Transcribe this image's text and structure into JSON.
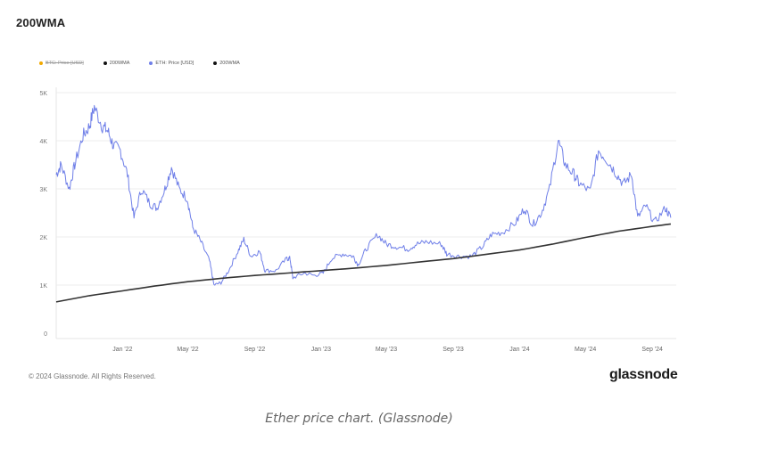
{
  "page": {
    "title": "200WMA",
    "copyright": "© 2024 Glassnode. All Rights Reserved.",
    "brand": "glassnode",
    "caption": "Ether price chart. (Glassnode)"
  },
  "legend": [
    {
      "label": "BTC: Price [USD]",
      "color": "#f2a900",
      "disabled": true
    },
    {
      "label": "200WMA",
      "color": "#111111",
      "disabled": false
    },
    {
      "label": "ETH: Price [USD]",
      "color": "#6f7fe8",
      "disabled": false
    },
    {
      "label": "200WMA",
      "color": "#111111",
      "disabled": false
    }
  ],
  "chart_data": {
    "type": "line",
    "title": "200WMA",
    "ylim": [
      0,
      5000
    ],
    "yticks": [
      0,
      1000,
      2000,
      3000,
      4000,
      5000
    ],
    "ytick_labels": [
      "0",
      "1K",
      "2K",
      "3K",
      "4K",
      "5K"
    ],
    "xlim": [
      "2021-09-01",
      "2024-10-15"
    ],
    "xticks": [
      {
        "date": "2022-01-01",
        "label": "Jan '22"
      },
      {
        "date": "2022-05-01",
        "label": "May '22"
      },
      {
        "date": "2022-09-01",
        "label": "Sep '22"
      },
      {
        "date": "2023-01-01",
        "label": "Jan '23"
      },
      {
        "date": "2023-05-01",
        "label": "May '23"
      },
      {
        "date": "2023-09-01",
        "label": "Sep '23"
      },
      {
        "date": "2024-01-01",
        "label": "Jan '24"
      },
      {
        "date": "2024-05-01",
        "label": "May '24"
      },
      {
        "date": "2024-09-01",
        "label": "Sep '24"
      }
    ],
    "grid": true,
    "series": [
      {
        "name": "ETH: Price [USD]",
        "color": "#6f7fe8",
        "points": [
          [
            "2021-09-01",
            3300
          ],
          [
            "2021-09-10",
            3500
          ],
          [
            "2021-09-25",
            3000
          ],
          [
            "2021-10-05",
            3500
          ],
          [
            "2021-10-20",
            4100
          ],
          [
            "2021-11-01",
            4300
          ],
          [
            "2021-11-10",
            4700
          ],
          [
            "2021-11-25",
            4300
          ],
          [
            "2021-12-05",
            4200
          ],
          [
            "2021-12-15",
            3900
          ],
          [
            "2021-12-28",
            3800
          ],
          [
            "2022-01-10",
            3300
          ],
          [
            "2022-01-22",
            2400
          ],
          [
            "2022-02-05",
            3000
          ],
          [
            "2022-02-20",
            2700
          ],
          [
            "2022-03-05",
            2600
          ],
          [
            "2022-03-20",
            3000
          ],
          [
            "2022-04-01",
            3450
          ],
          [
            "2022-04-15",
            3000
          ],
          [
            "2022-04-30",
            2800
          ],
          [
            "2022-05-10",
            2200
          ],
          [
            "2022-05-25",
            1900
          ],
          [
            "2022-06-10",
            1500
          ],
          [
            "2022-06-18",
            1000
          ],
          [
            "2022-07-01",
            1050
          ],
          [
            "2022-07-15",
            1300
          ],
          [
            "2022-08-01",
            1700
          ],
          [
            "2022-08-12",
            1950
          ],
          [
            "2022-08-25",
            1600
          ],
          [
            "2022-09-10",
            1700
          ],
          [
            "2022-09-20",
            1300
          ],
          [
            "2022-10-10",
            1300
          ],
          [
            "2022-10-30",
            1550
          ],
          [
            "2022-11-05",
            1550
          ],
          [
            "2022-11-10",
            1150
          ],
          [
            "2022-12-01",
            1250
          ],
          [
            "2022-12-20",
            1200
          ],
          [
            "2023-01-05",
            1250
          ],
          [
            "2023-01-20",
            1550
          ],
          [
            "2023-02-10",
            1650
          ],
          [
            "2023-03-01",
            1600
          ],
          [
            "2023-03-10",
            1420
          ],
          [
            "2023-03-25",
            1750
          ],
          [
            "2023-04-15",
            2050
          ],
          [
            "2023-05-01",
            1850
          ],
          [
            "2023-05-20",
            1800
          ],
          [
            "2023-06-10",
            1750
          ],
          [
            "2023-06-25",
            1850
          ],
          [
            "2023-07-15",
            1900
          ],
          [
            "2023-08-10",
            1850
          ],
          [
            "2023-08-20",
            1650
          ],
          [
            "2023-09-10",
            1600
          ],
          [
            "2023-10-05",
            1600
          ],
          [
            "2023-10-25",
            1800
          ],
          [
            "2023-11-10",
            2050
          ],
          [
            "2023-12-01",
            2100
          ],
          [
            "2023-12-25",
            2300
          ],
          [
            "2024-01-10",
            2600
          ],
          [
            "2024-01-25",
            2250
          ],
          [
            "2024-02-10",
            2500
          ],
          [
            "2024-02-25",
            3000
          ],
          [
            "2024-03-12",
            4000
          ],
          [
            "2024-03-25",
            3500
          ],
          [
            "2024-04-10",
            3300
          ],
          [
            "2024-04-20",
            3100
          ],
          [
            "2024-05-10",
            2950
          ],
          [
            "2024-05-25",
            3800
          ],
          [
            "2024-06-10",
            3600
          ],
          [
            "2024-06-25",
            3350
          ],
          [
            "2024-07-10",
            3100
          ],
          [
            "2024-07-25",
            3300
          ],
          [
            "2024-08-05",
            2400
          ],
          [
            "2024-08-20",
            2650
          ],
          [
            "2024-09-05",
            2300
          ],
          [
            "2024-09-25",
            2600
          ],
          [
            "2024-10-05",
            2400
          ]
        ]
      },
      {
        "name": "200WMA",
        "color": "#333333",
        "points": [
          [
            "2021-09-01",
            650
          ],
          [
            "2021-11-01",
            780
          ],
          [
            "2022-01-01",
            880
          ],
          [
            "2022-03-01",
            980
          ],
          [
            "2022-05-01",
            1070
          ],
          [
            "2022-07-01",
            1140
          ],
          [
            "2022-09-01",
            1200
          ],
          [
            "2022-11-01",
            1250
          ],
          [
            "2023-01-01",
            1300
          ],
          [
            "2023-03-01",
            1350
          ],
          [
            "2023-05-01",
            1410
          ],
          [
            "2023-07-01",
            1480
          ],
          [
            "2023-09-01",
            1550
          ],
          [
            "2023-11-01",
            1640
          ],
          [
            "2024-01-01",
            1730
          ],
          [
            "2024-03-01",
            1850
          ],
          [
            "2024-05-01",
            1990
          ],
          [
            "2024-07-01",
            2120
          ],
          [
            "2024-09-01",
            2220
          ],
          [
            "2024-10-05",
            2270
          ]
        ]
      }
    ]
  }
}
